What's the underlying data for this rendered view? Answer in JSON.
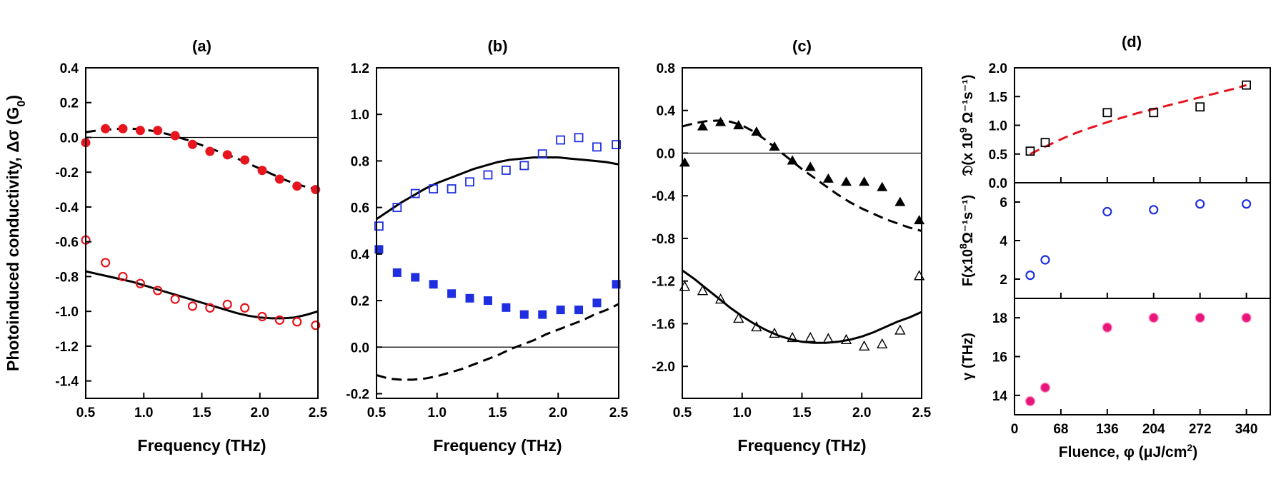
{
  "chart_data": [
    {
      "type": "scatter",
      "panel_label": "(a)",
      "xlabel": "Frequency (THz)",
      "ylabel": "Photoinduced conductivity, Δσ (G",
      "ylabel_sub": "0",
      "ylabel_end": ")",
      "xlim": [
        0.5,
        2.5
      ],
      "ylim": [
        -1.5,
        0.4
      ],
      "xticks": [
        "0.5",
        "1.0",
        "1.5",
        "2.0",
        "2.5"
      ],
      "xtick_values": [
        0.5,
        1.0,
        1.5,
        2.0,
        2.5
      ],
      "yticks": [
        "0.4",
        "0.2",
        "0.0",
        "-0.2",
        "-0.4",
        "-0.6",
        "-0.8",
        "-1.0",
        "-1.2",
        "-1.4"
      ],
      "ytick_values": [
        0.4,
        0.2,
        0.0,
        -0.2,
        -0.4,
        -0.6,
        -0.8,
        -1.0,
        -1.2,
        -1.4
      ],
      "zero_line": 0.0,
      "series": [
        {
          "marker": "filled-circle",
          "color": "#e8141e",
          "x": [
            0.5,
            0.67,
            0.82,
            0.97,
            1.12,
            1.27,
            1.42,
            1.57,
            1.72,
            1.87,
            2.02,
            2.17,
            2.32,
            2.48
          ],
          "y": [
            -0.03,
            0.05,
            0.05,
            0.04,
            0.04,
            0.01,
            -0.04,
            -0.08,
            -0.1,
            -0.13,
            -0.19,
            -0.24,
            -0.28,
            -0.3
          ]
        },
        {
          "marker": "open-circle",
          "color": "#e8141e",
          "x": [
            0.5,
            0.67,
            0.82,
            0.97,
            1.12,
            1.27,
            1.42,
            1.57,
            1.72,
            1.87,
            2.02,
            2.17,
            2.32,
            2.48
          ],
          "y": [
            -0.59,
            -0.72,
            -0.8,
            -0.84,
            -0.88,
            -0.93,
            -0.97,
            -0.98,
            -0.96,
            -0.98,
            -1.03,
            -1.05,
            -1.06,
            -1.08
          ]
        },
        {
          "line": "dashed",
          "color": "#000000",
          "x": [
            0.5,
            0.6,
            0.7,
            0.8,
            0.9,
            1.0,
            1.1,
            1.2,
            1.3,
            1.4,
            1.5,
            1.6,
            1.7,
            1.8,
            1.9,
            2.0,
            2.1,
            2.2,
            2.3,
            2.4,
            2.5
          ],
          "y": [
            0.03,
            0.04,
            0.045,
            0.05,
            0.05,
            0.045,
            0.035,
            0.02,
            0.0,
            -0.02,
            -0.045,
            -0.07,
            -0.095,
            -0.12,
            -0.15,
            -0.18,
            -0.21,
            -0.24,
            -0.265,
            -0.285,
            -0.3
          ]
        },
        {
          "line": "solid",
          "color": "#000000",
          "x": [
            0.5,
            0.6,
            0.7,
            0.8,
            0.9,
            1.0,
            1.1,
            1.2,
            1.3,
            1.4,
            1.5,
            1.6,
            1.7,
            1.8,
            1.9,
            2.0,
            2.1,
            2.2,
            2.3,
            2.4,
            2.5
          ],
          "y": [
            -0.77,
            -0.785,
            -0.8,
            -0.815,
            -0.83,
            -0.85,
            -0.87,
            -0.89,
            -0.91,
            -0.93,
            -0.95,
            -0.97,
            -0.99,
            -1.01,
            -1.025,
            -1.035,
            -1.04,
            -1.04,
            -1.035,
            -1.02,
            -1.0
          ]
        }
      ]
    },
    {
      "type": "scatter",
      "panel_label": "(b)",
      "xlabel": "Frequency (THz)",
      "xlim": [
        0.5,
        2.5
      ],
      "ylim": [
        -0.22,
        1.2
      ],
      "xticks": [
        "0.5",
        "1.0",
        "1.5",
        "2.0",
        "2.5"
      ],
      "xtick_values": [
        0.5,
        1.0,
        1.5,
        2.0,
        2.5
      ],
      "yticks": [
        "1.2",
        "1.0",
        "0.8",
        "0.6",
        "0.4",
        "0.2",
        "0.0",
        "-0.2"
      ],
      "ytick_values": [
        1.2,
        1.0,
        0.8,
        0.6,
        0.4,
        0.2,
        0.0,
        -0.2
      ],
      "zero_line": 0.0,
      "series": [
        {
          "marker": "open-square",
          "color": "#1f2fe0",
          "x": [
            0.52,
            0.67,
            0.82,
            0.97,
            1.12,
            1.27,
            1.42,
            1.57,
            1.72,
            1.87,
            2.02,
            2.17,
            2.32,
            2.48
          ],
          "y": [
            0.52,
            0.6,
            0.66,
            0.68,
            0.68,
            0.71,
            0.74,
            0.76,
            0.78,
            0.83,
            0.89,
            0.9,
            0.86,
            0.87
          ]
        },
        {
          "marker": "filled-square",
          "color": "#1f2fe0",
          "x": [
            0.52,
            0.67,
            0.82,
            0.97,
            1.12,
            1.27,
            1.42,
            1.57,
            1.72,
            1.87,
            2.02,
            2.17,
            2.32,
            2.48
          ],
          "y": [
            0.42,
            0.32,
            0.3,
            0.27,
            0.23,
            0.21,
            0.2,
            0.17,
            0.14,
            0.14,
            0.16,
            0.16,
            0.19,
            0.27
          ]
        },
        {
          "line": "solid",
          "color": "#000000",
          "x": [
            0.5,
            0.6,
            0.7,
            0.8,
            0.9,
            1.0,
            1.1,
            1.2,
            1.3,
            1.4,
            1.5,
            1.6,
            1.7,
            1.8,
            1.9,
            2.0,
            2.1,
            2.2,
            2.3,
            2.4,
            2.5
          ],
          "y": [
            0.55,
            0.585,
            0.62,
            0.65,
            0.68,
            0.705,
            0.725,
            0.745,
            0.765,
            0.78,
            0.795,
            0.805,
            0.81,
            0.815,
            0.815,
            0.815,
            0.81,
            0.805,
            0.8,
            0.795,
            0.785
          ]
        },
        {
          "line": "dashed",
          "color": "#000000",
          "x": [
            0.5,
            0.6,
            0.7,
            0.8,
            0.9,
            1.0,
            1.1,
            1.2,
            1.3,
            1.4,
            1.5,
            1.6,
            1.7,
            1.8,
            1.9,
            2.0,
            2.1,
            2.2,
            2.3,
            2.4,
            2.5
          ],
          "y": [
            -0.12,
            -0.135,
            -0.14,
            -0.14,
            -0.135,
            -0.125,
            -0.11,
            -0.095,
            -0.075,
            -0.055,
            -0.035,
            -0.01,
            0.01,
            0.03,
            0.055,
            0.075,
            0.095,
            0.115,
            0.14,
            0.16,
            0.185
          ]
        }
      ]
    },
    {
      "type": "scatter",
      "panel_label": "(c)",
      "xlabel": "Frequency (THz)",
      "xlim": [
        0.5,
        2.5
      ],
      "ylim": [
        -2.3,
        0.8
      ],
      "xticks": [
        "0.5",
        "1.0",
        "1.5",
        "2.0",
        "2.5"
      ],
      "xtick_values": [
        0.5,
        1.0,
        1.5,
        2.0,
        2.5
      ],
      "yticks": [
        "0.8",
        "0.4",
        "0.0",
        "-0.4",
        "-0.8",
        "-1.2",
        "-1.6",
        "-2.0"
      ],
      "ytick_values": [
        0.8,
        0.4,
        0.0,
        -0.4,
        -0.8,
        -1.2,
        -1.6,
        -2.0
      ],
      "zero_line": 0.0,
      "series": [
        {
          "marker": "filled-triangle",
          "color": "#000000",
          "x": [
            0.52,
            0.67,
            0.82,
            0.97,
            1.12,
            1.27,
            1.42,
            1.57,
            1.72,
            1.87,
            2.02,
            2.17,
            2.32,
            2.48
          ],
          "y": [
            -0.09,
            0.25,
            0.29,
            0.26,
            0.2,
            0.06,
            -0.07,
            -0.13,
            -0.24,
            -0.27,
            -0.27,
            -0.32,
            -0.46,
            -0.63
          ]
        },
        {
          "marker": "open-triangle",
          "color": "#000000",
          "x": [
            0.52,
            0.67,
            0.82,
            0.97,
            1.12,
            1.27,
            1.42,
            1.57,
            1.72,
            1.87,
            2.02,
            2.17,
            2.32,
            2.48
          ],
          "y": [
            -1.25,
            -1.29,
            -1.37,
            -1.55,
            -1.63,
            -1.69,
            -1.73,
            -1.73,
            -1.74,
            -1.75,
            -1.81,
            -1.79,
            -1.66,
            -1.15
          ]
        },
        {
          "line": "dashed",
          "color": "#000000",
          "x": [
            0.5,
            0.6,
            0.7,
            0.8,
            0.9,
            1.0,
            1.1,
            1.2,
            1.3,
            1.4,
            1.5,
            1.6,
            1.7,
            1.8,
            1.9,
            2.0,
            2.1,
            2.2,
            2.3,
            2.4,
            2.5
          ],
          "y": [
            0.25,
            0.28,
            0.3,
            0.305,
            0.295,
            0.26,
            0.2,
            0.12,
            0.03,
            -0.06,
            -0.15,
            -0.23,
            -0.31,
            -0.39,
            -0.46,
            -0.52,
            -0.57,
            -0.62,
            -0.66,
            -0.7,
            -0.73
          ]
        },
        {
          "line": "solid",
          "color": "#000000",
          "x": [
            0.5,
            0.6,
            0.7,
            0.8,
            0.9,
            1.0,
            1.1,
            1.2,
            1.3,
            1.4,
            1.5,
            1.6,
            1.7,
            1.8,
            1.9,
            2.0,
            2.1,
            2.2,
            2.3,
            2.4,
            2.5
          ],
          "y": [
            -1.1,
            -1.18,
            -1.27,
            -1.36,
            -1.45,
            -1.53,
            -1.6,
            -1.66,
            -1.71,
            -1.745,
            -1.77,
            -1.78,
            -1.78,
            -1.77,
            -1.75,
            -1.72,
            -1.68,
            -1.63,
            -1.58,
            -1.54,
            -1.49
          ]
        }
      ]
    },
    {
      "type": "scatter",
      "panel_label": "(d)",
      "xlabel": "Fluence, φ (μJ/cm",
      "xlabel_sup": "2",
      "xlabel_end": ")",
      "xlim": [
        0,
        375
      ],
      "xticks": [
        "0",
        "68",
        "136",
        "204",
        "272",
        "340"
      ],
      "xtick_values": [
        0,
        68,
        136,
        204,
        272,
        340
      ],
      "subplots": [
        {
          "ylabel": "𝔇(x 10",
          "ylabel_sup": "9",
          "ylabel_end": " Ω⁻¹s⁻¹)",
          "ylim": [
            0,
            2.0
          ],
          "yticks": [
            "2.0",
            "1.5",
            "1.0",
            "0.5",
            "0.0"
          ],
          "ytick_values": [
            2.0,
            1.5,
            1.0,
            0.5,
            0.0
          ],
          "series": [
            {
              "marker": "open-square",
              "color": "#000000",
              "x": [
                23,
                45,
                136,
                204,
                272,
                340
              ],
              "y": [
                0.55,
                0.7,
                1.22,
                1.22,
                1.32,
                1.7
              ]
            },
            {
              "line": "dashed",
              "color": "#e8141e",
              "x": [
                23,
                40,
                60,
                80,
                100,
                120,
                140,
                160,
                180,
                200,
                220,
                240,
                260,
                280,
                300,
                320,
                340
              ],
              "y": [
                0.5,
                0.6,
                0.71,
                0.82,
                0.91,
                0.99,
                1.07,
                1.14,
                1.21,
                1.27,
                1.33,
                1.39,
                1.45,
                1.51,
                1.57,
                1.63,
                1.7
              ]
            }
          ]
        },
        {
          "ylabel": "F(x10",
          "ylabel_sup": "8",
          "ylabel_end": "Ω⁻¹s⁻¹)",
          "ylim": [
            1.0,
            7.0
          ],
          "yticks": [
            "6",
            "4",
            "2"
          ],
          "ytick_values": [
            6,
            4,
            2
          ],
          "series": [
            {
              "marker": "open-circle",
              "color": "#1f2fe0",
              "x": [
                23,
                45,
                136,
                204,
                272,
                340
              ],
              "y": [
                2.2,
                3.0,
                5.5,
                5.6,
                5.9,
                5.9
              ]
            }
          ]
        },
        {
          "ylabel": "γ (THz)",
          "ylim": [
            13,
            19
          ],
          "yticks": [
            "18",
            "16",
            "14"
          ],
          "ytick_values": [
            18,
            16,
            14
          ],
          "series": [
            {
              "marker": "filled-circle-pink",
              "color": "#e8157a",
              "x": [
                23,
                45,
                136,
                204,
                272,
                340
              ],
              "y": [
                13.7,
                14.4,
                17.5,
                18.0,
                18.0,
                18.0
              ]
            }
          ]
        }
      ]
    }
  ]
}
